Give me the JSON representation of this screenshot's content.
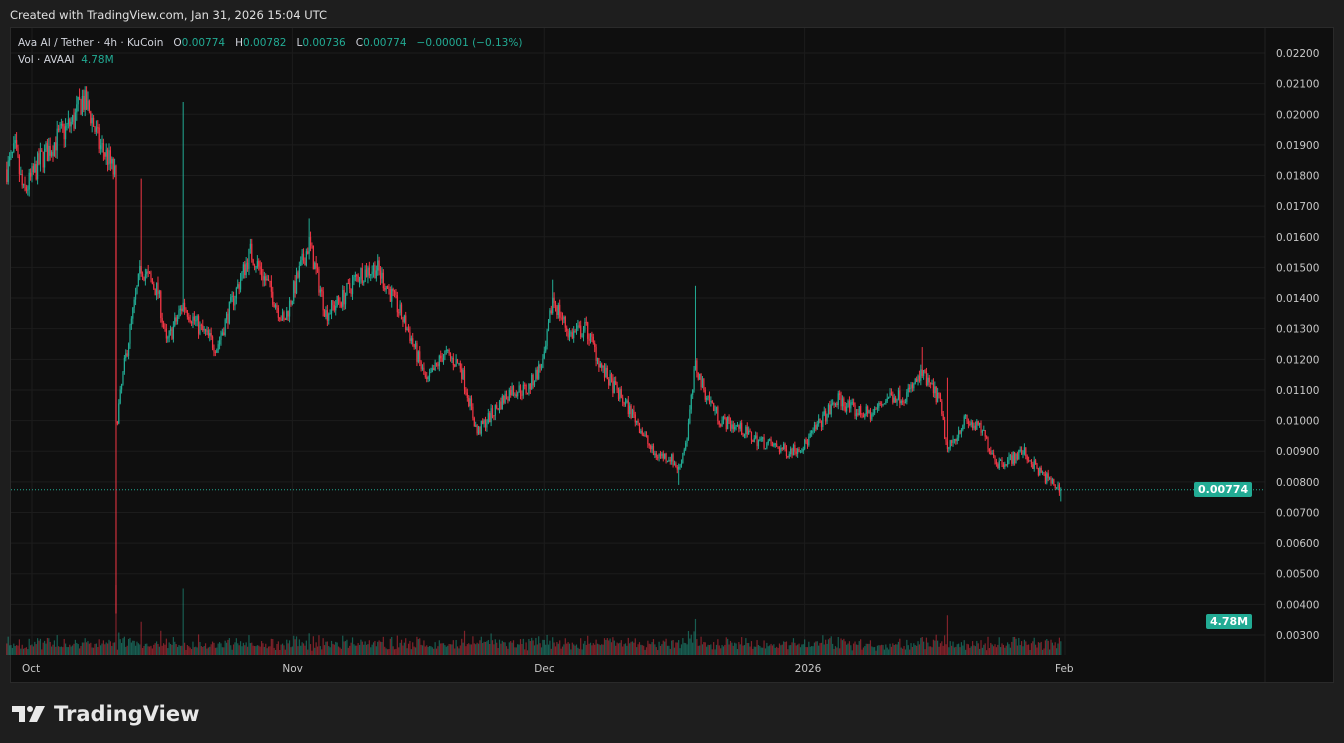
{
  "header": {
    "created_text": "Created with TradingView.com, Jan 31, 2026 15:04 UTC"
  },
  "legend": {
    "symbol": "Ava AI / Tether · 4h · KuCoin",
    "o_label": "O",
    "o": "0.00774",
    "h_label": "H",
    "h": "0.00782",
    "l_label": "L",
    "l": "0.00736",
    "c_label": "C",
    "c": "0.00774",
    "change": "−0.00001 (−0.13%)",
    "vol_label": "Vol · AVAAI",
    "vol": "4.78M"
  },
  "badges": {
    "last_price": "0.00774",
    "last_volume": "4.78M"
  },
  "footer": {
    "brand": "TradingView"
  },
  "colors": {
    "up": "#22ab94",
    "down": "#f23645",
    "background": "#0f0f0f"
  },
  "chart_data": {
    "type": "candlestick",
    "interval": "4h",
    "title": "Ava AI / Tether · 4h · KuCoin",
    "ylim": [
      0.003,
      0.022
    ],
    "y_ticks": [
      "0.02200",
      "0.02100",
      "0.02000",
      "0.01900",
      "0.01800",
      "0.01700",
      "0.01600",
      "0.01500",
      "0.01400",
      "0.01300",
      "0.01200",
      "0.01100",
      "0.01000",
      "0.00900",
      "0.00800",
      "0.00700",
      "0.00600",
      "0.00500",
      "0.00400",
      "0.00300"
    ],
    "x_ticks": [
      {
        "label": "Oct",
        "date": "2025-10-01"
      },
      {
        "label": "Nov",
        "date": "2025-11-01"
      },
      {
        "label": "Dec",
        "date": "2025-12-01"
      },
      {
        "label": "2026",
        "date": "2026-01-01"
      },
      {
        "label": "Feb",
        "date": "2026-02-01"
      }
    ],
    "grid": true,
    "approx_closes": [
      [
        "2025-09-28",
        0.0182
      ],
      [
        "2025-09-29",
        0.0188
      ],
      [
        "2025-09-30",
        0.0174
      ],
      [
        "2025-10-02",
        0.0185
      ],
      [
        "2025-10-04",
        0.0192
      ],
      [
        "2025-10-06",
        0.0198
      ],
      [
        "2025-10-07",
        0.0205
      ],
      [
        "2025-10-08",
        0.02
      ],
      [
        "2025-10-09",
        0.019
      ],
      [
        "2025-10-10",
        0.0186
      ],
      [
        "2025-10-10T20",
        0.018
      ],
      [
        "2025-10-11",
        0.0098
      ],
      [
        "2025-10-12",
        0.0118
      ],
      [
        "2025-10-13",
        0.0135
      ],
      [
        "2025-10-14",
        0.015
      ],
      [
        "2025-10-16",
        0.0142
      ],
      [
        "2025-10-17",
        0.0125
      ],
      [
        "2025-10-19",
        0.0138
      ],
      [
        "2025-10-21",
        0.013
      ],
      [
        "2025-10-23",
        0.0124
      ],
      [
        "2025-10-25",
        0.014
      ],
      [
        "2025-10-27",
        0.0155
      ],
      [
        "2025-10-29",
        0.0145
      ],
      [
        "2025-10-31",
        0.0132
      ],
      [
        "2025-11-02",
        0.015
      ],
      [
        "2025-11-03",
        0.0158
      ],
      [
        "2025-11-05",
        0.0135
      ],
      [
        "2025-11-07",
        0.014
      ],
      [
        "2025-11-09",
        0.0148
      ],
      [
        "2025-11-11",
        0.015
      ],
      [
        "2025-11-13",
        0.014
      ],
      [
        "2025-11-15",
        0.0128
      ],
      [
        "2025-11-17",
        0.0112
      ],
      [
        "2025-11-19",
        0.0122
      ],
      [
        "2025-11-21",
        0.0118
      ],
      [
        "2025-11-23",
        0.0096
      ],
      [
        "2025-11-25",
        0.0103
      ],
      [
        "2025-11-27",
        0.011
      ],
      [
        "2025-11-29",
        0.011
      ],
      [
        "2025-12-01",
        0.012
      ],
      [
        "2025-12-02",
        0.014
      ],
      [
        "2025-12-04",
        0.0128
      ],
      [
        "2025-12-06",
        0.013
      ],
      [
        "2025-12-08",
        0.0116
      ],
      [
        "2025-12-10",
        0.0108
      ],
      [
        "2025-12-12",
        0.01
      ],
      [
        "2025-12-14",
        0.0089
      ],
      [
        "2025-12-16",
        0.0088
      ],
      [
        "2025-12-17",
        0.0084
      ],
      [
        "2025-12-18",
        0.0095
      ],
      [
        "2025-12-19",
        0.0118
      ],
      [
        "2025-12-20",
        0.011
      ],
      [
        "2025-12-22",
        0.01
      ],
      [
        "2025-12-24",
        0.0098
      ],
      [
        "2025-12-26",
        0.0094
      ],
      [
        "2025-12-28",
        0.0092
      ],
      [
        "2025-12-30",
        0.009
      ],
      [
        "2026-01-01",
        0.0092
      ],
      [
        "2026-01-03",
        0.01
      ],
      [
        "2026-01-05",
        0.0107
      ],
      [
        "2026-01-07",
        0.0103
      ],
      [
        "2026-01-09",
        0.0102
      ],
      [
        "2026-01-11",
        0.0108
      ],
      [
        "2026-01-13",
        0.0108
      ],
      [
        "2026-01-15",
        0.0115
      ],
      [
        "2026-01-17",
        0.0107
      ],
      [
        "2026-01-18",
        0.009
      ],
      [
        "2026-01-19",
        0.0095
      ],
      [
        "2026-01-20",
        0.01
      ],
      [
        "2026-01-22",
        0.0097
      ],
      [
        "2026-01-24",
        0.0086
      ],
      [
        "2026-01-26",
        0.0088
      ],
      [
        "2026-01-27",
        0.009
      ],
      [
        "2026-01-29",
        0.0083
      ],
      [
        "2026-01-31T12",
        0.00774
      ]
    ],
    "notable_wicks": [
      {
        "date": "2025-10-07",
        "high": 0.0208
      },
      {
        "date": "2025-10-11",
        "low": 0.0037
      },
      {
        "date": "2025-10-14",
        "high": 0.0179
      },
      {
        "date": "2025-10-19",
        "high": 0.0204
      },
      {
        "date": "2025-11-03",
        "high": 0.0166
      },
      {
        "date": "2025-12-02",
        "high": 0.0146
      },
      {
        "date": "2025-12-19",
        "high": 0.0144
      },
      {
        "date": "2025-12-17",
        "low": 0.0079
      },
      {
        "date": "2026-01-15",
        "high": 0.0124
      },
      {
        "date": "2026-01-18",
        "high": 0.0114
      },
      {
        "date": "2026-01-31T12",
        "low": 0.00736
      }
    ],
    "last": {
      "open": 0.00774,
      "high": 0.00782,
      "low": 0.00736,
      "close": 0.00774,
      "volume": "4.78M"
    }
  }
}
